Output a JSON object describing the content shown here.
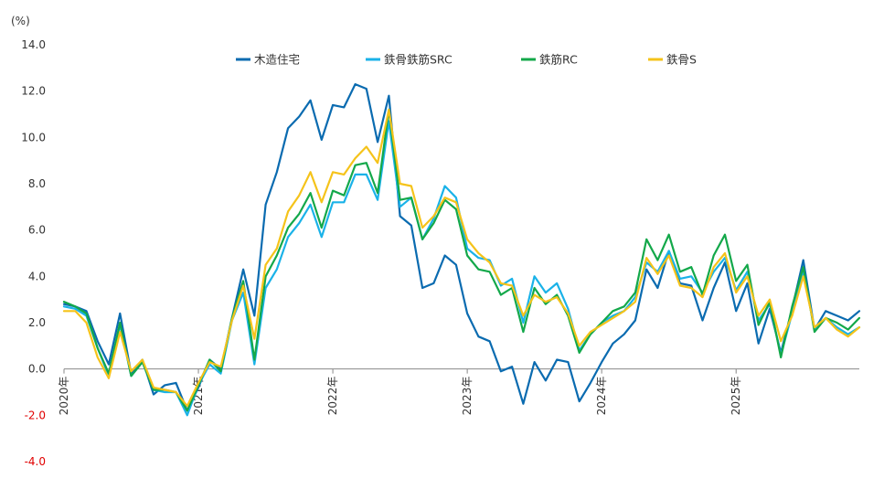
{
  "chart_data": {
    "type": "line",
    "unit_label": "(%)",
    "ylim": [
      -4.0,
      14.0
    ],
    "y_ticks": [
      {
        "value": 14,
        "label": "14.0"
      },
      {
        "value": 12,
        "label": "12.0"
      },
      {
        "value": 10,
        "label": "10.0"
      },
      {
        "value": 8,
        "label": "8.0"
      },
      {
        "value": 6,
        "label": "6.0"
      },
      {
        "value": 4,
        "label": "4.0"
      },
      {
        "value": 2,
        "label": "2.0"
      },
      {
        "value": 0,
        "label": "0.0"
      },
      {
        "value": -2,
        "label": "-2.0"
      },
      {
        "value": -4,
        "label": "-4.0"
      }
    ],
    "negative_tick_color": "#e00000",
    "x_ticks": [
      {
        "index": 0,
        "label": "2020年"
      },
      {
        "index": 12,
        "label": "2021年"
      },
      {
        "index": 24,
        "label": "2022年"
      },
      {
        "index": 36,
        "label": "2023年"
      },
      {
        "index": 48,
        "label": "2024年"
      },
      {
        "index": 60,
        "label": "2025年"
      }
    ],
    "grid": false,
    "legend_position": "top",
    "series": [
      {
        "name": "木造住宅",
        "color": "#0a6bb0",
        "values": [
          2.8,
          2.7,
          2.5,
          1.2,
          0.2,
          2.4,
          -0.2,
          0.4,
          -1.1,
          -0.7,
          -0.6,
          -1.8,
          -0.8,
          0.4,
          0.0,
          2.2,
          4.3,
          2.3,
          7.1,
          8.5,
          10.4,
          10.9,
          11.6,
          9.9,
          11.4,
          11.3,
          12.3,
          12.1,
          9.8,
          11.8,
          6.6,
          6.2,
          3.5,
          3.7,
          4.9,
          4.5,
          2.4,
          1.4,
          1.2,
          -0.1,
          0.1,
          -1.5,
          0.3,
          -0.5,
          0.4,
          0.3,
          -1.4,
          -0.6,
          0.3,
          1.1,
          1.5,
          2.1,
          4.3,
          3.5,
          5.1,
          3.7,
          3.6,
          2.1,
          3.5,
          4.6,
          2.5,
          3.7,
          1.1,
          2.6,
          0.7,
          2.6,
          4.7,
          1.7,
          2.5,
          2.3,
          2.1,
          2.5
        ]
      },
      {
        "name": "鉄骨鉄筋SRC",
        "color": "#1ab2e8",
        "values": [
          2.7,
          2.6,
          2.3,
          0.9,
          -0.3,
          1.9,
          -0.3,
          0.3,
          -0.9,
          -1.0,
          -1.0,
          -2.0,
          -0.7,
          0.2,
          -0.2,
          2.1,
          3.3,
          0.2,
          3.5,
          4.3,
          5.7,
          6.3,
          7.1,
          5.7,
          7.2,
          7.2,
          8.4,
          8.4,
          7.3,
          10.7,
          7.0,
          7.4,
          5.6,
          6.5,
          7.9,
          7.4,
          5.2,
          4.8,
          4.7,
          3.6,
          3.9,
          2.0,
          4.0,
          3.3,
          3.7,
          2.6,
          0.8,
          1.5,
          2.0,
          2.3,
          2.5,
          3.1,
          4.6,
          4.2,
          5.1,
          3.9,
          4.0,
          3.3,
          4.2,
          4.8,
          3.4,
          4.2,
          2.1,
          2.8,
          0.6,
          2.4,
          4.2,
          1.7,
          2.2,
          1.8,
          1.5,
          1.8
        ]
      },
      {
        "name": "鉄筋RC",
        "color": "#13a84a",
        "values": [
          2.9,
          2.7,
          2.4,
          0.9,
          -0.2,
          2.0,
          -0.3,
          0.3,
          -0.9,
          -0.9,
          -1.0,
          -1.8,
          -0.7,
          0.4,
          -0.1,
          2.2,
          3.8,
          0.4,
          4.0,
          4.9,
          6.1,
          6.7,
          7.6,
          6.1,
          7.7,
          7.5,
          8.8,
          8.9,
          7.6,
          11.2,
          7.3,
          7.4,
          5.6,
          6.3,
          7.3,
          6.9,
          4.9,
          4.3,
          4.2,
          3.2,
          3.5,
          1.6,
          3.5,
          2.8,
          3.2,
          2.3,
          0.7,
          1.5,
          2.0,
          2.5,
          2.7,
          3.3,
          5.6,
          4.7,
          5.8,
          4.2,
          4.4,
          3.2,
          4.9,
          5.8,
          3.8,
          4.5,
          1.9,
          2.9,
          0.5,
          2.7,
          4.4,
          1.6,
          2.2,
          2.0,
          1.7,
          2.2
        ]
      },
      {
        "name": "鉄骨S",
        "color": "#f5c31a",
        "values": [
          2.5,
          2.5,
          2.0,
          0.5,
          -0.4,
          1.6,
          -0.1,
          0.4,
          -0.8,
          -0.9,
          -1.0,
          -1.6,
          -0.6,
          0.3,
          0.1,
          2.1,
          3.6,
          1.3,
          4.5,
          5.2,
          6.8,
          7.5,
          8.5,
          7.2,
          8.5,
          8.4,
          9.1,
          9.6,
          8.9,
          11.2,
          8.0,
          7.9,
          6.1,
          6.6,
          7.4,
          7.2,
          5.6,
          5.0,
          4.6,
          3.7,
          3.6,
          2.3,
          3.2,
          2.9,
          3.1,
          2.4,
          1.0,
          1.6,
          1.9,
          2.2,
          2.5,
          2.9,
          4.8,
          4.1,
          4.9,
          3.6,
          3.5,
          3.1,
          4.4,
          5.0,
          3.3,
          4.0,
          2.3,
          3.0,
          1.2,
          2.3,
          4.0,
          1.8,
          2.2,
          1.7,
          1.4,
          1.8
        ]
      }
    ]
  }
}
